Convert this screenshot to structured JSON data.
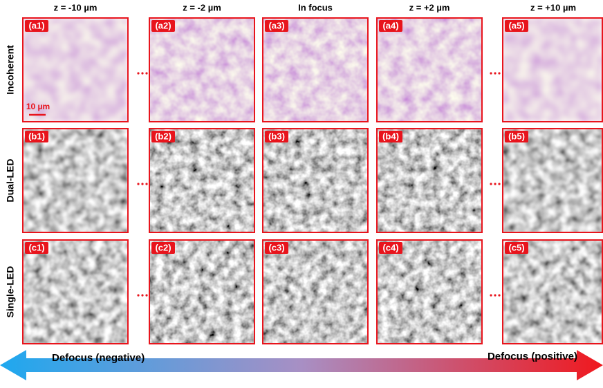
{
  "columns": [
    "z = -10 µm",
    "z = -2 µm",
    "In focus",
    "z = +2 µm",
    "z = +10 µm"
  ],
  "rows": [
    {
      "label": "Incoherent",
      "panels": [
        "(a1)",
        "(a2)",
        "(a3)",
        "(a4)",
        "(a5)"
      ]
    },
    {
      "label": "Dual-LED",
      "panels": [
        "(b1)",
        "(b2)",
        "(b3)",
        "(b4)",
        "(b5)"
      ]
    },
    {
      "label": "Single-LED",
      "panels": [
        "(c1)",
        "(c2)",
        "(c3)",
        "(c4)",
        "(c5)"
      ]
    }
  ],
  "scale_bar": "10 µm",
  "arrow": {
    "left": "Defocus (negative)",
    "right": "Defocus (positive)"
  }
}
